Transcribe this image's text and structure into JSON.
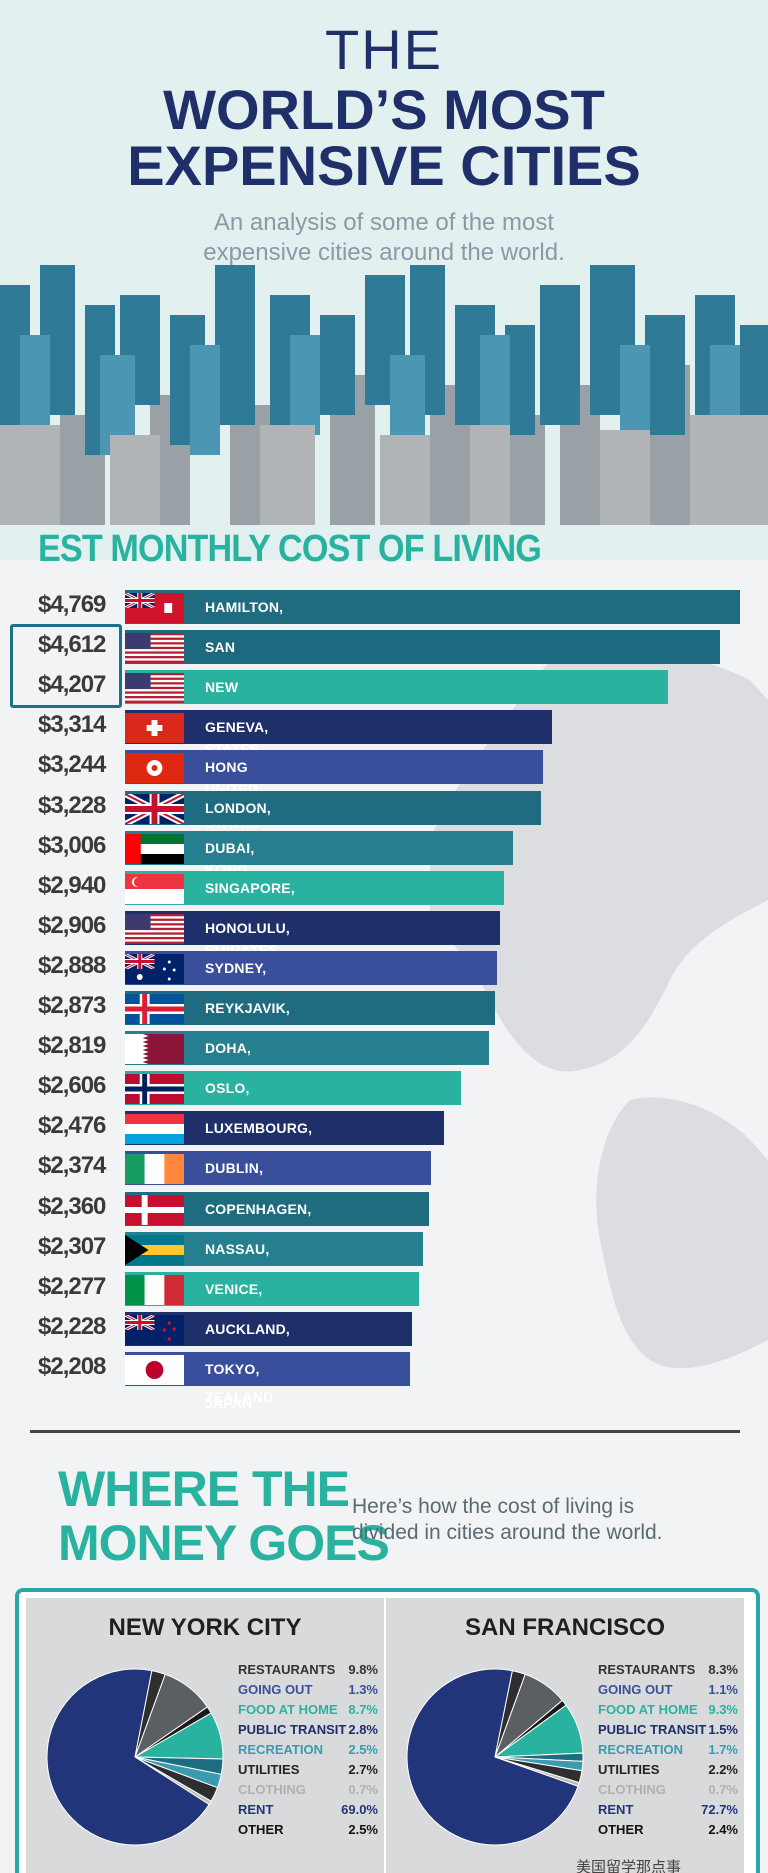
{
  "header": {
    "title_the": "THE",
    "title_line1": "WORLD’S MOST",
    "title_line2": "EXPENSIVE CITIES",
    "subtitle_line1": "An analysis of some of the most",
    "subtitle_line2": "expensive cities around the world."
  },
  "section1": {
    "title": "EST MONTHLY COST OF LIVING"
  },
  "chart_data": [
    {
      "type": "bar",
      "title": "EST MONTHLY COST OF LIVING",
      "orientation": "horizontal",
      "xlim": [
        0,
        4769
      ],
      "categories": [
        "HAMILTON, BERMUDA",
        "SAN FRANCISCO, CA, UNITED STATES",
        "NEW YORK, NY, UNITED STATES",
        "GENEVA, SWITZERLAND",
        "HONG KONG, HONG KONG",
        "LONDON, UNITED KINGDOM",
        "DUBAI, UNITED ARAB EMIRATES",
        "SINGAPORE, SINGAPORE",
        "HONOLULU, HI, UNITED STATES",
        "SYDNEY, AUSTRALIA",
        "REYKJAVIK, ICELAND",
        "DOHA, QATAR",
        "OSLO, NORWAY",
        "LUXEMBOURG, LUXEMBOURG",
        "DUBLIN, IRELAND",
        "COPENHAGEN, DENMARK",
        "NASSAU, BAHAMAS",
        "VENICE, ITALY",
        "AUCKLAND, NEW ZEALAND",
        "TOKYO, JAPAN"
      ],
      "values": [
        4769,
        4612,
        4207,
        3314,
        3244,
        3228,
        3006,
        2940,
        2906,
        2888,
        2873,
        2819,
        2606,
        2476,
        2374,
        2360,
        2307,
        2277,
        2228,
        2208
      ],
      "value_labels": [
        "$4,769",
        "$4,612",
        "$4,207",
        "$3,314",
        "$3,244",
        "$3,228",
        "$3,006",
        "$2,940",
        "$2,906",
        "$2,888",
        "$2,873",
        "$2,819",
        "$2,606",
        "$2,476",
        "$2,374",
        "$2,360",
        "$2,307",
        "$2,277",
        "$2,228",
        "$2,208"
      ],
      "bar_colors": [
        "#1f6b7f",
        "#1d6a80",
        "#2ab2a0",
        "#1e2f6a",
        "#3a4f9c",
        "#1f6b7f",
        "#257f8f",
        "#2ab2a0",
        "#1e2f6a",
        "#3a4f9c",
        "#1f6b7f",
        "#257f8f",
        "#2ab2a0",
        "#1e2f6a",
        "#3a4f9c",
        "#1f6b7f",
        "#257f8f",
        "#2ab2a0",
        "#1e2f6a",
        "#3a4f9c"
      ],
      "flags": [
        "bermuda-flag",
        "usa-flag",
        "usa-flag",
        "switzerland-flag",
        "hong-kong-flag",
        "uk-flag",
        "uae-flag",
        "singapore-flag",
        "usa-flag",
        "australia-flag",
        "iceland-flag",
        "qatar-flag",
        "norway-flag",
        "luxembourg-flag",
        "ireland-flag",
        "denmark-flag",
        "bahamas-flag",
        "italy-flag",
        "new-zealand-flag",
        "japan-flag"
      ],
      "highlighted": [
        "SAN FRANCISCO, CA, UNITED STATES",
        "NEW YORK, NY, UNITED STATES"
      ]
    },
    {
      "type": "pie",
      "title": "NEW YORK CITY",
      "categories": [
        "RESTAURANTS",
        "GOING OUT",
        "FOOD AT HOME",
        "PUBLIC TRANSIT",
        "RECREATION",
        "UTILITIES",
        "CLOTHING",
        "RENT",
        "OTHER"
      ],
      "values": [
        9.8,
        1.3,
        8.7,
        2.8,
        2.5,
        2.7,
        0.7,
        69.0,
        2.5
      ],
      "value_labels": [
        "9.8%",
        "1.3%",
        "8.7%",
        "2.8%",
        "2.5%",
        "2.7%",
        "0.7%",
        "69.0%",
        "2.5%"
      ],
      "colors": [
        "#5b5e62",
        "#1a1a1a",
        "#2ab2a0",
        "#1f6b7f",
        "#3a9ab0",
        "#2e2e2e",
        "#bcbcbc",
        "#23357a",
        "#2e2e2e"
      ]
    },
    {
      "type": "pie",
      "title": "SAN FRANCISCO",
      "categories": [
        "RESTAURANTS",
        "GOING OUT",
        "FOOD AT HOME",
        "PUBLIC TRANSIT",
        "RECREATION",
        "UTILITIES",
        "CLOTHING",
        "RENT",
        "OTHER"
      ],
      "values": [
        8.3,
        1.1,
        9.3,
        1.5,
        1.7,
        2.2,
        0.7,
        72.7,
        2.4
      ],
      "value_labels": [
        "8.3%",
        "1.1%",
        "9.3%",
        "1.5%",
        "1.7%",
        "2.2%",
        "0.7%",
        "72.7%",
        "2.4%"
      ],
      "colors": [
        "#5b5e62",
        "#1a1a1a",
        "#2ab2a0",
        "#1f6b7f",
        "#3a9ab0",
        "#2e2e2e",
        "#bcbcbc",
        "#23357a",
        "#2e2e2e"
      ]
    }
  ],
  "legend_label_colors": [
    "#333333",
    "#3a4f9c",
    "#2ab2a0",
    "#1e2f6a",
    "#3a9ab0",
    "#222222",
    "#b0b0b0",
    "#23357a",
    "#111111"
  ],
  "section2": {
    "title_line1": "WHERE THE",
    "title_line2": "MONEY GOES",
    "subtitle_line1": "Here’s how the cost of living is",
    "subtitle_line2": "divided in cities around the world."
  },
  "watermark": "美国留学那点事"
}
